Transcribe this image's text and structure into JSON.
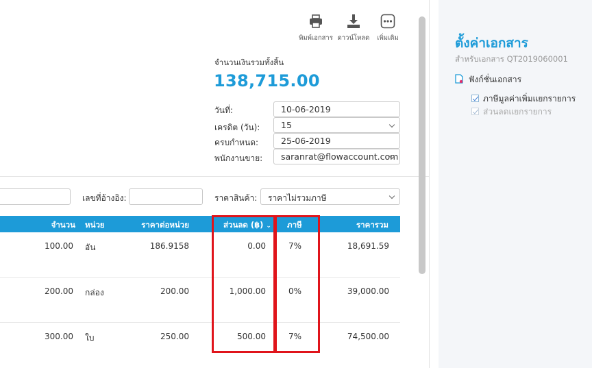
{
  "toolbar": {
    "print_label": "พิมพ์เอกสาร",
    "download_label": "ดาวน์โหลด",
    "more_label": "เพิ่มเติม"
  },
  "summary": {
    "total_label": "จำนวนเงินรวมทั้งสิ้น",
    "total_value": "138,715.00"
  },
  "form": {
    "date_label": "วันที่:",
    "date_value": "10-06-2019",
    "credit_label": "เครดิต (วัน):",
    "credit_value": "15",
    "due_label": "ครบกำหนด:",
    "due_value": "25-06-2019",
    "sales_label": "พนักงานขาย:",
    "sales_value": "saranrat@flowaccount.com"
  },
  "filters": {
    "reference_label": "เลขที่อ้างอิง:",
    "reference_value": "",
    "price_type_label": "ราคาสินค้า:",
    "price_type_value": "ราคาไม่รวมภาษี"
  },
  "table": {
    "headers": {
      "qty": "จำนวน",
      "unit": "หน่วย",
      "unit_price": "ราคาต่อหน่วย",
      "discount": "ส่วนลด (฿)",
      "tax": "ภาษี",
      "total": "ราคารวม"
    },
    "rows": [
      {
        "qty": "100.00",
        "unit": "อัน",
        "unit_price": "186.9158",
        "discount": "0.00",
        "tax": "7%",
        "total": "18,691.59"
      },
      {
        "qty": "200.00",
        "unit": "กล่อง",
        "unit_price": "200.00",
        "discount": "1,000.00",
        "tax": "0%",
        "total": "39,000.00"
      },
      {
        "qty": "300.00",
        "unit": "ใบ",
        "unit_price": "250.00",
        "discount": "500.00",
        "tax": "7%",
        "total": "74,500.00"
      }
    ]
  },
  "side_panel": {
    "title": "ตั้งค่าเอกสาร",
    "subtitle": "สำหรับเอกสาร QT2019060001",
    "section_label": "ฟังก์ชั่นเอกสาร",
    "options": [
      {
        "label": "ภาษีมูลค่าเพิ่มแยกรายการ",
        "checked": true,
        "disabled": false
      },
      {
        "label": "ส่วนลดแยกรายการ",
        "checked": true,
        "disabled": true
      }
    ]
  },
  "colors": {
    "accent": "#1d9bd8",
    "highlight": "#e0141b"
  }
}
